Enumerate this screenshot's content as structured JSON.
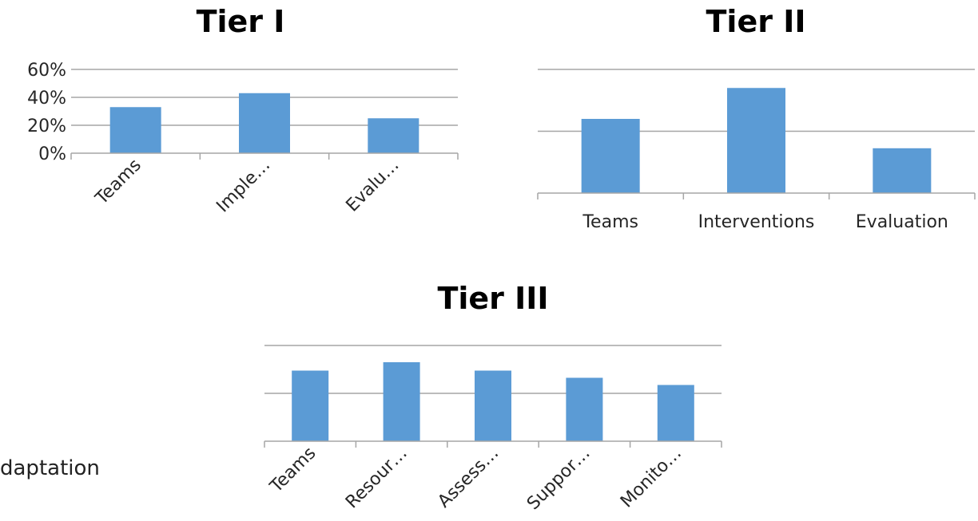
{
  "colors": {
    "bar": "#5b9bd5",
    "grid": "#a6a6a6",
    "text": "#262626"
  },
  "stray_text": "daptation",
  "chart_data": [
    {
      "type": "bar",
      "title": "Tier I",
      "categories": [
        "Teams",
        "Imple…",
        "Evalu…"
      ],
      "values": [
        0.33,
        0.43,
        0.25
      ],
      "ylim": [
        0,
        0.6
      ],
      "yticks": [
        0,
        0.2,
        0.4,
        0.6
      ],
      "ytick_labels": [
        "0%",
        "20%",
        "40%",
        "60%"
      ],
      "grid": true,
      "legend": "none",
      "label_rotation": -45
    },
    {
      "type": "bar",
      "title": "Tier II",
      "categories": [
        "Teams",
        "Interventions",
        "Evaluation"
      ],
      "values": [
        0.48,
        0.68,
        0.29
      ],
      "ylim": [
        0,
        0.8
      ],
      "yticks": [
        0.4,
        0.8
      ],
      "ytick_labels": [],
      "grid": true,
      "legend": "none",
      "label_rotation": 0
    },
    {
      "type": "bar",
      "title": "Tier III",
      "categories": [
        "Teams",
        "Resour…",
        "Assess…",
        "Suppor…",
        "Monito…"
      ],
      "values": [
        0.59,
        0.66,
        0.59,
        0.53,
        0.47
      ],
      "ylim": [
        0,
        0.8
      ],
      "yticks": [
        0.4,
        0.8
      ],
      "ytick_labels": [],
      "grid": true,
      "legend": "none",
      "label_rotation": -45
    }
  ]
}
